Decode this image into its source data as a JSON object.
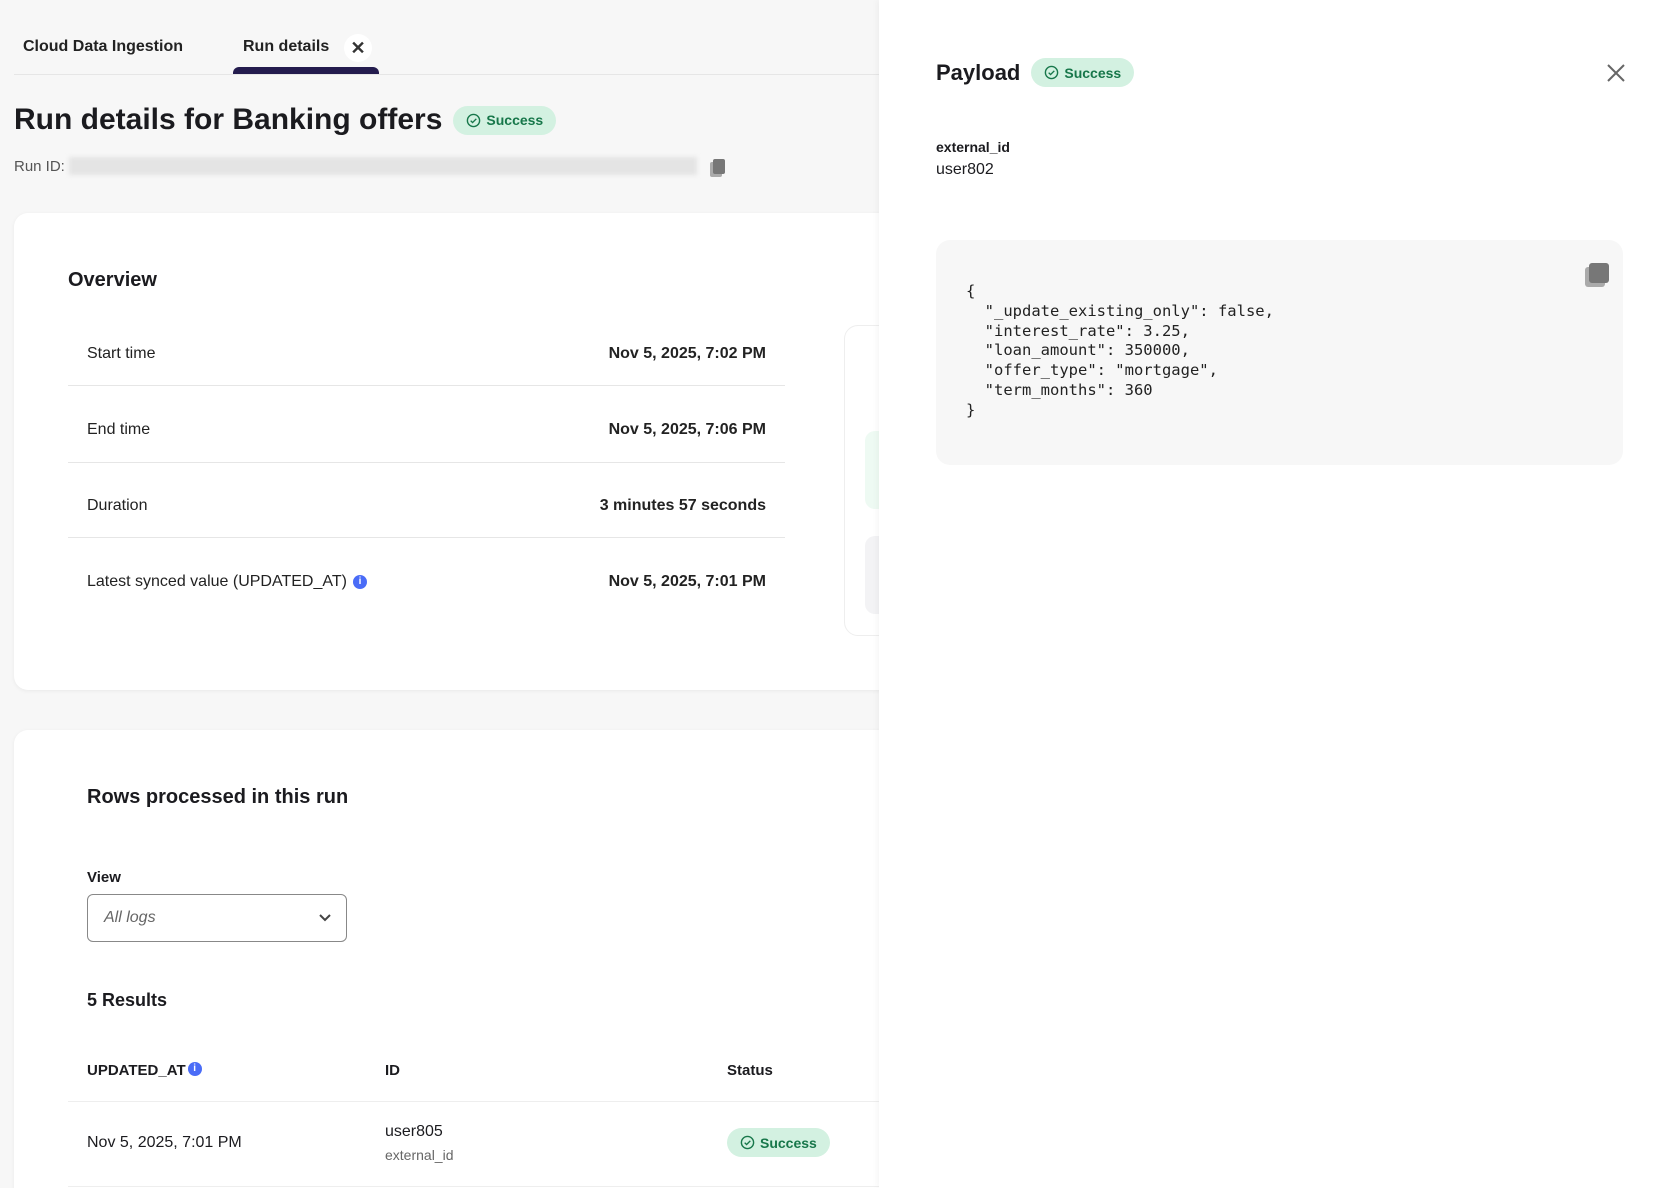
{
  "tabs": [
    {
      "label": "Cloud Data Ingestion",
      "active": false
    },
    {
      "label": "Run details",
      "active": true,
      "close_icon": "close-icon"
    }
  ],
  "header": {
    "title": "Run details for Banking offers",
    "status": "Success",
    "run_id_label": "Run ID:",
    "run_id_value": "(redacted)"
  },
  "overview": {
    "heading": "Overview",
    "rows": [
      {
        "label": "Start time",
        "value": "Nov 5, 2025, 7:02 PM"
      },
      {
        "label": "End time",
        "value": "Nov 5, 2025, 7:06 PM"
      },
      {
        "label": "Duration",
        "value": "3 minutes 57 seconds"
      },
      {
        "label": "Latest synced value (UPDATED_AT)",
        "value": "Nov 5, 2025, 7:01 PM",
        "info_icon": "info-icon"
      }
    ]
  },
  "rows_section": {
    "heading": "Rows processed in this run",
    "view_label": "View",
    "view_value": "All logs",
    "results": "5 Results",
    "columns": [
      "UPDATED_AT",
      "ID",
      "Status"
    ],
    "rows": [
      {
        "updated_at": "Nov 5, 2025, 7:01 PM",
        "id": "user805",
        "id_type": "external_id",
        "status": "Success"
      }
    ]
  },
  "panel": {
    "title": "Payload",
    "status": "Success",
    "field_label": "external_id",
    "field_value": "user802",
    "code": "{\n  \"_update_existing_only\": false,\n  \"interest_rate\": 3.25,\n  \"loan_amount\": 350000,\n  \"offer_type\": \"mortgage\",\n  \"term_months\": 360\n}"
  },
  "colors": {
    "accent": "#241c4e",
    "success_bg": "#d3f1e1",
    "success_text": "#17774a",
    "info": "#4a6cf7"
  }
}
